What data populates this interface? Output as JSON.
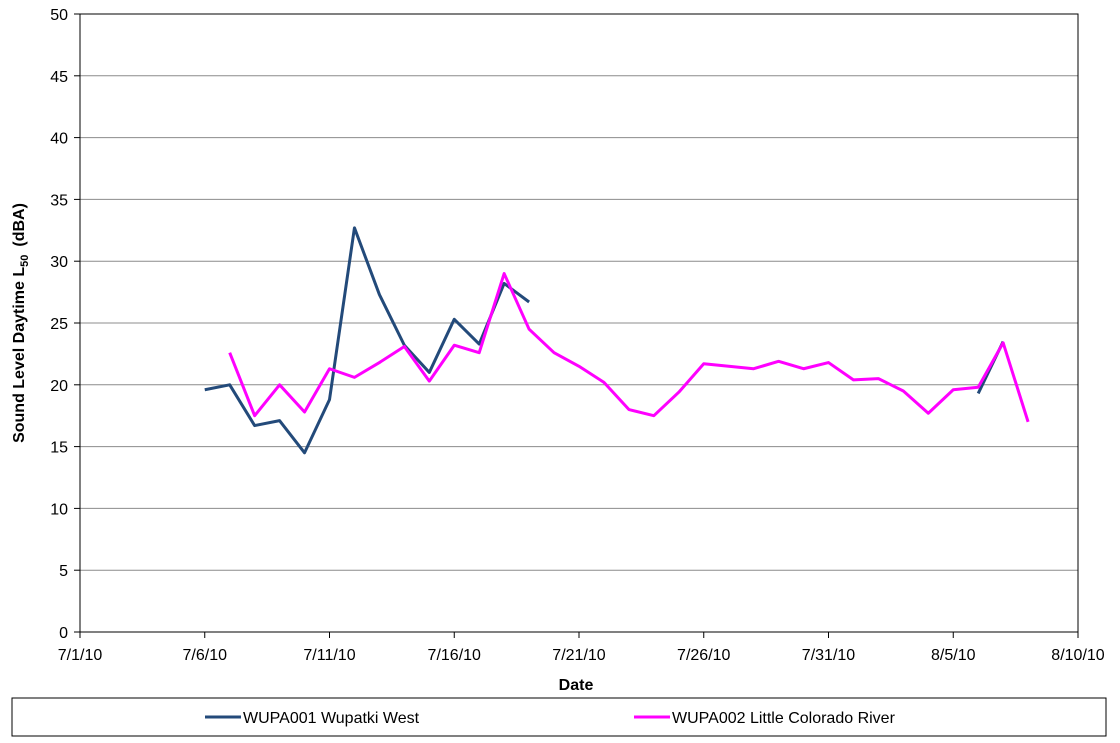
{
  "chart_data": {
    "type": "line",
    "x_label": "Date",
    "y_label": {
      "text": "Sound Level Daytime L",
      "subscript": "50",
      "unit": "(dBA)"
    },
    "x": [
      "7/6/10",
      "7/7/10",
      "7/8/10",
      "7/9/10",
      "7/10/10",
      "7/11/10",
      "7/12/10",
      "7/13/10",
      "7/14/10",
      "7/15/10",
      "7/16/10",
      "7/17/10",
      "7/18/10",
      "7/19/10",
      "7/20/10",
      "7/21/10",
      "7/22/10",
      "7/23/10",
      "7/24/10",
      "7/25/10",
      "7/26/10",
      "7/27/10",
      "7/28/10",
      "7/29/10",
      "7/30/10",
      "7/31/10",
      "8/1/10",
      "8/2/10",
      "8/3/10",
      "8/4/10",
      "8/5/10",
      "8/6/10",
      "8/7/10",
      "8/8/10"
    ],
    "series": [
      {
        "name": "WUPA001 Wupatki West",
        "color": "#234a7a",
        "values": [
          19.6,
          20.0,
          16.7,
          17.1,
          14.5,
          18.8,
          32.7,
          27.3,
          23.2,
          21.0,
          25.3,
          23.3,
          28.2,
          26.7,
          null,
          null,
          null,
          null,
          null,
          null,
          null,
          null,
          null,
          null,
          null,
          null,
          null,
          null,
          null,
          null,
          null,
          19.3,
          23.5,
          null
        ]
      },
      {
        "name": "WUPA002 Little Colorado River",
        "color": "#ff00ff",
        "values": [
          null,
          22.6,
          17.5,
          20.0,
          17.8,
          21.3,
          20.6,
          21.8,
          23.1,
          20.3,
          23.2,
          22.6,
          29.0,
          24.5,
          22.6,
          21.5,
          20.2,
          18.0,
          17.5,
          19.4,
          21.7,
          21.5,
          21.3,
          21.9,
          21.3,
          21.8,
          20.4,
          20.5,
          19.5,
          17.7,
          19.6,
          19.8,
          23.4,
          17.0
        ]
      }
    ],
    "xlim": [
      "7/1/10",
      "8/10/10"
    ],
    "xticks": [
      "7/1/10",
      "7/6/10",
      "7/11/10",
      "7/16/10",
      "7/21/10",
      "7/26/10",
      "7/31/10",
      "8/5/10",
      "8/10/10"
    ],
    "ylim": [
      0,
      50
    ],
    "yticks": [
      0,
      5,
      10,
      15,
      20,
      25,
      30,
      35,
      40,
      45,
      50
    ],
    "grid": true,
    "legend": "bottom"
  }
}
